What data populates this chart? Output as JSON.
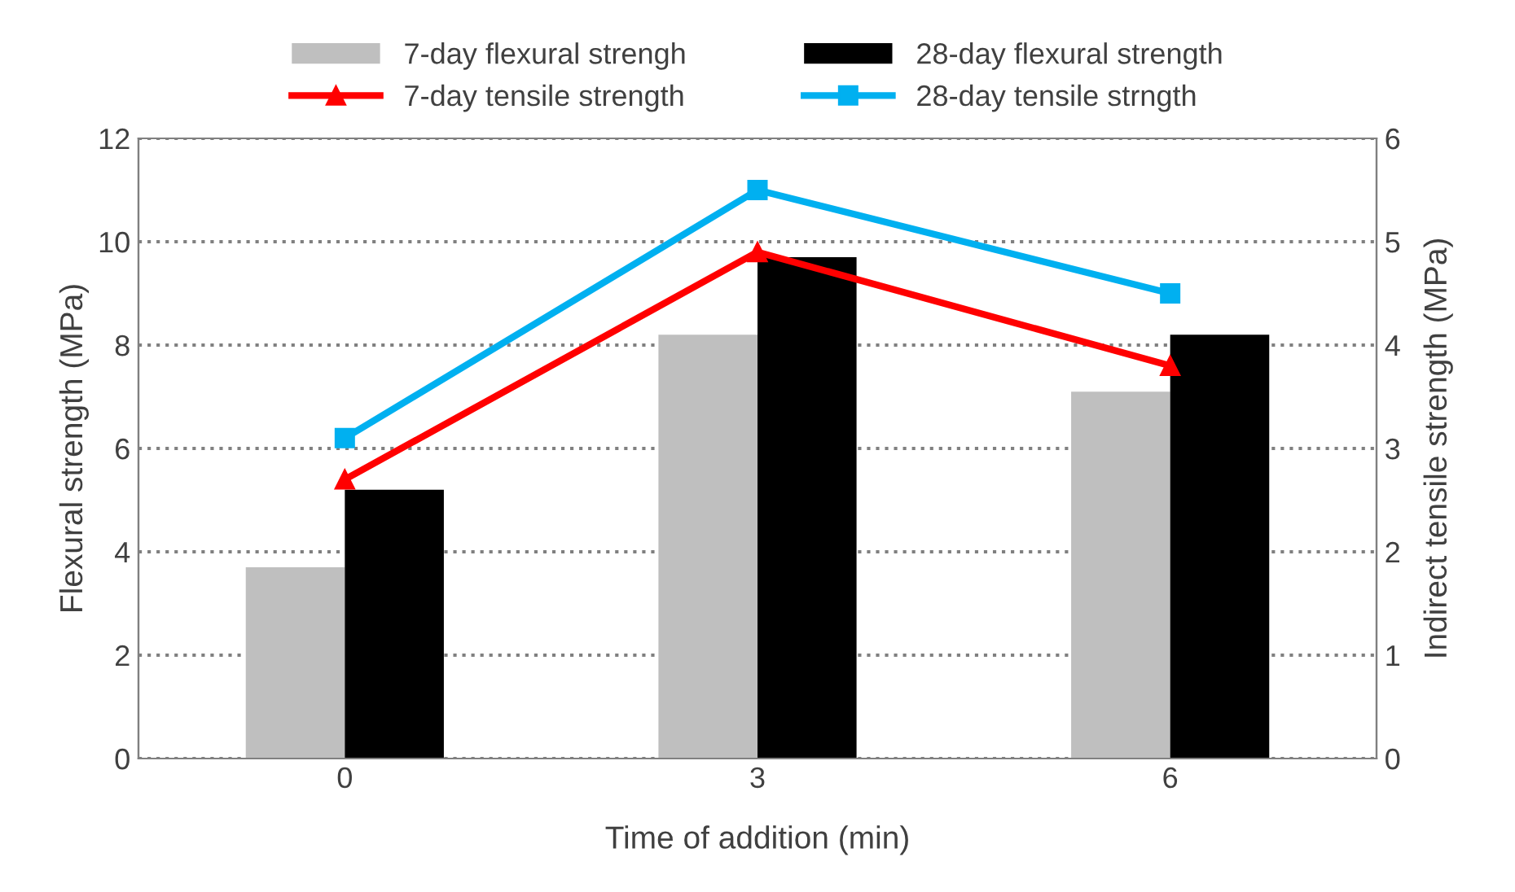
{
  "chart_data": {
    "type": "bar",
    "xlabel": "Time of addition (min)",
    "ylabel": "Flexural strength (MPa)",
    "y2label": "Indirect tensile strength (MPa)",
    "categories": [
      "0",
      "3",
      "6"
    ],
    "series": [
      {
        "name": "7-day flexural strengh",
        "color": "#bfbfbf",
        "values": [
          3.7,
          8.2,
          7.1
        ]
      },
      {
        "name": "28-day flexural strength",
        "color": "#000000",
        "values": [
          5.2,
          9.7,
          8.2
        ]
      },
      {
        "name": "7-day tensile strength",
        "type": "line",
        "axis": "y2",
        "marker": "triangle",
        "color": "#ff0000",
        "values": [
          2.7,
          4.9,
          3.8
        ]
      },
      {
        "name": "28-day tensile strngth",
        "type": "line",
        "axis": "y2",
        "marker": "square",
        "color": "#00b0f0",
        "values": [
          3.1,
          5.5,
          4.5
        ]
      }
    ],
    "ylim": [
      0,
      12
    ],
    "yticks": [
      0,
      2,
      4,
      6,
      8,
      10,
      12
    ],
    "y2lim": [
      0,
      6
    ],
    "y2ticks": [
      0,
      1,
      2,
      3,
      4,
      5,
      6
    ],
    "grid": "y",
    "legend": "top",
    "line_style": "solid"
  }
}
